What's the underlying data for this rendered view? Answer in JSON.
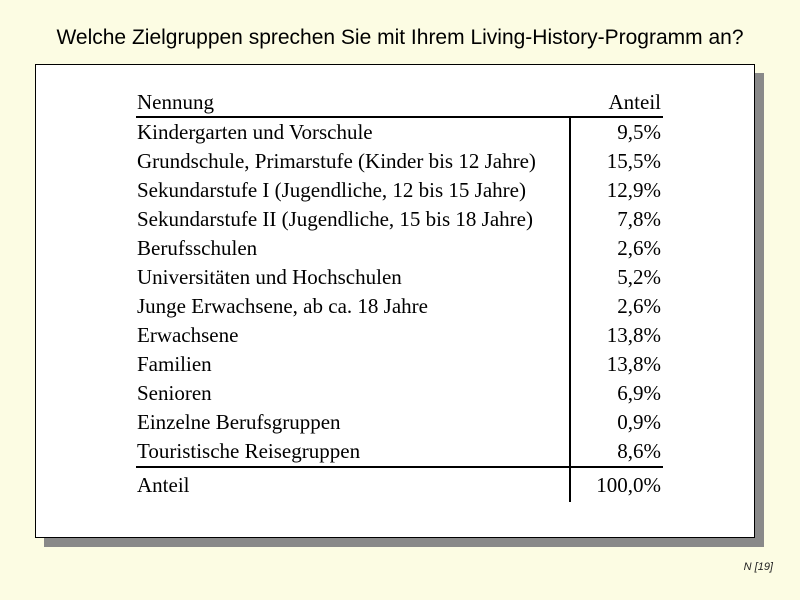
{
  "slide": {
    "title": "Welche Zielgruppen sprechen Sie mit Ihrem Living-History-Programm an?",
    "footnote": "N [19]"
  },
  "table": {
    "header": {
      "category": "Nennung",
      "share": "Anteil"
    },
    "rows": [
      {
        "label": "Kindergarten und Vorschule",
        "value": "9,5%"
      },
      {
        "label": "Grundschule, Primarstufe (Kinder bis 12 Jahre)",
        "value": "15,5%"
      },
      {
        "label": "Sekundarstufe I (Jugendliche, 12 bis 15 Jahre)",
        "value": "12,9%"
      },
      {
        "label": "Sekundarstufe II (Jugendliche, 15 bis 18 Jahre)",
        "value": "7,8%"
      },
      {
        "label": "Berufsschulen",
        "value": "2,6%"
      },
      {
        "label": "Universitäten und Hochschulen",
        "value": "5,2%"
      },
      {
        "label": "Junge Erwachsene, ab ca. 18 Jahre",
        "value": "2,6%"
      },
      {
        "label": "Erwachsene",
        "value": "13,8%"
      },
      {
        "label": "Familien",
        "value": "13,8%"
      },
      {
        "label": "Senioren",
        "value": "6,9%"
      },
      {
        "label": "Einzelne Berufsgruppen",
        "value": "0,9%"
      },
      {
        "label": "Touristische Reisegruppen",
        "value": "8,6%"
      }
    ],
    "total": {
      "label": "Anteil",
      "value": "100,0%"
    }
  },
  "colors": {
    "page_background": "#FCFCE3",
    "box_background": "#FFFFFF",
    "box_border": "#000000",
    "box_shadow": "#898989",
    "text": "#000000"
  },
  "chart_data": {
    "type": "table",
    "title": "Welche Zielgruppen sprechen Sie mit Ihrem Living-History-Programm an?",
    "columns": [
      "Nennung",
      "Anteil"
    ],
    "categories": [
      "Kindergarten und Vorschule",
      "Grundschule, Primarstufe (Kinder bis 12 Jahre)",
      "Sekundarstufe I (Jugendliche, 12 bis 15 Jahre)",
      "Sekundarstufe II (Jugendliche, 15 bis 18 Jahre)",
      "Berufsschulen",
      "Universitäten und Hochschulen",
      "Junge Erwachsene, ab ca. 18 Jahre",
      "Erwachsene",
      "Familien",
      "Senioren",
      "Einzelne Berufsgruppen",
      "Touristische Reisegruppen"
    ],
    "values_percent": [
      9.5,
      15.5,
      12.9,
      7.8,
      2.6,
      5.2,
      2.6,
      13.8,
      13.8,
      6.9,
      0.9,
      8.6
    ],
    "total_label": "Anteil",
    "total_percent": 100.0
  }
}
